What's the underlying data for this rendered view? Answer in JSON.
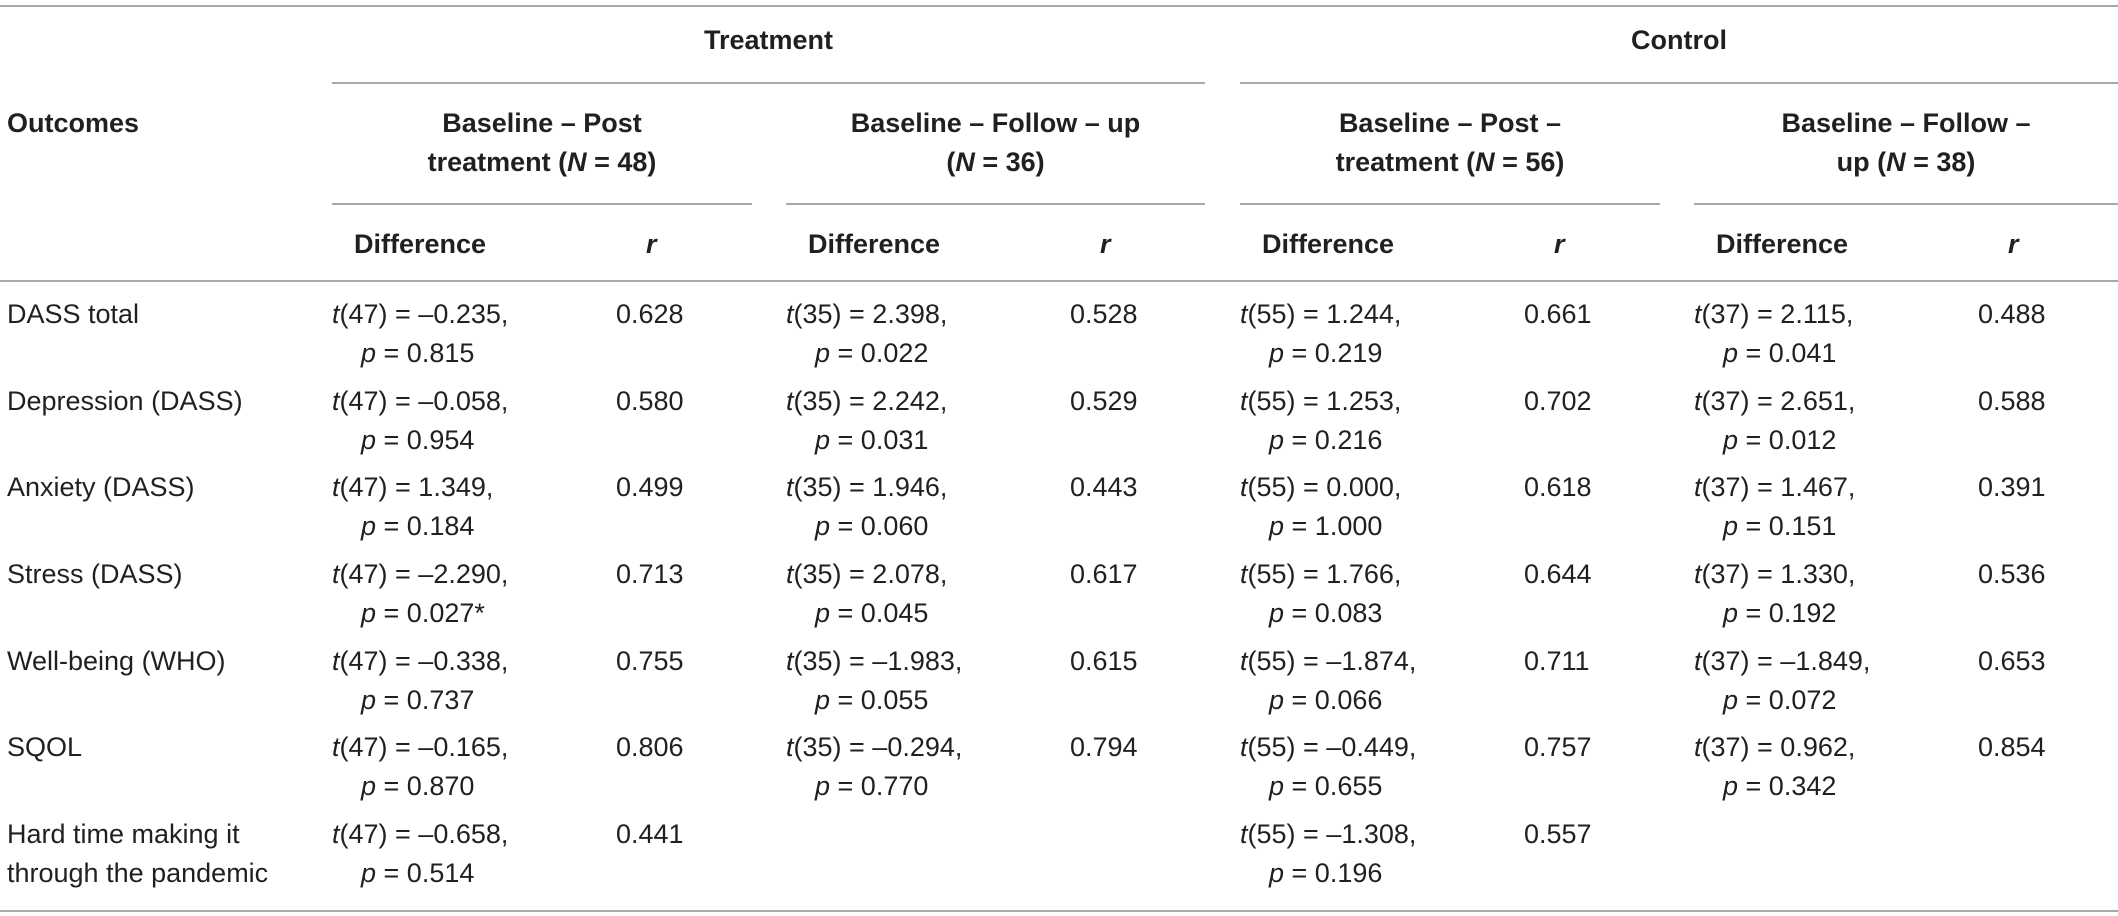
{
  "header": {
    "outcomes_label": "Outcomes",
    "groups": [
      {
        "label": "Treatment",
        "periods": [
          {
            "line1": "Baseline – Post",
            "line2_pre": "treatment (",
            "n_letter": "N",
            "line2_post": " = 48)"
          },
          {
            "line1": "Baseline – Follow – up",
            "line2_pre": "(",
            "n_letter": "N",
            "line2_post": " = 36)"
          }
        ]
      },
      {
        "label": "Control",
        "periods": [
          {
            "line1": "Baseline – Post –",
            "line2_pre": "treatment (",
            "n_letter": "N",
            "line2_post": " = 56)"
          },
          {
            "line1": "Baseline – Follow –",
            "line2_pre": "up (",
            "n_letter": "N",
            "line2_post": " = 38)"
          }
        ]
      }
    ],
    "difference_label": "Difference",
    "r_label": "r"
  },
  "rows": [
    {
      "outcome_lines": [
        "DASS total"
      ],
      "cells": [
        {
          "df": "(47) = –0.235,",
          "p": " = 0.815",
          "r": "0.628"
        },
        {
          "df": "(35) = 2.398,",
          "p": " = 0.022",
          "r": "0.528"
        },
        {
          "df": "(55) = 1.244,",
          "p": " = 0.219",
          "r": "0.661"
        },
        {
          "df": "(37) = 2.115,",
          "p": " = 0.041",
          "r": "0.488"
        }
      ]
    },
    {
      "outcome_lines": [
        "Depression (DASS)"
      ],
      "cells": [
        {
          "df": "(47) = –0.058,",
          "p": " = 0.954",
          "r": "0.580"
        },
        {
          "df": "(35) = 2.242,",
          "p": " = 0.031",
          "r": "0.529"
        },
        {
          "df": "(55) = 1.253,",
          "p": " = 0.216",
          "r": "0.702"
        },
        {
          "df": "(37) = 2.651,",
          "p": " = 0.012",
          "r": "0.588"
        }
      ]
    },
    {
      "outcome_lines": [
        "Anxiety (DASS)"
      ],
      "cells": [
        {
          "df": "(47) = 1.349,",
          "p": " = 0.184",
          "r": "0.499"
        },
        {
          "df": "(35) = 1.946,",
          "p": " = 0.060",
          "r": "0.443"
        },
        {
          "df": "(55) = 0.000,",
          "p": " = 1.000",
          "r": "0.618"
        },
        {
          "df": "(37) = 1.467,",
          "p": " = 0.151",
          "r": "0.391"
        }
      ]
    },
    {
      "outcome_lines": [
        "Stress (DASS)"
      ],
      "cells": [
        {
          "df": "(47) = –2.290,",
          "p": " = 0.027*",
          "r": "0.713"
        },
        {
          "df": "(35) = 2.078,",
          "p": " = 0.045",
          "r": "0.617"
        },
        {
          "df": "(55) = 1.766,",
          "p": " = 0.083",
          "r": "0.644"
        },
        {
          "df": "(37) = 1.330,",
          "p": " = 0.192",
          "r": "0.536"
        }
      ]
    },
    {
      "outcome_lines": [
        "Well-being (WHO)"
      ],
      "cells": [
        {
          "df": "(47) = –0.338,",
          "p": " = 0.737",
          "r": "0.755"
        },
        {
          "df": "(35) = –1.983,",
          "p": " = 0.055",
          "r": "0.615"
        },
        {
          "df": "(55) = –1.874,",
          "p": " = 0.066",
          "r": "0.711"
        },
        {
          "df": "(37) = –1.849,",
          "p": " = 0.072",
          "r": "0.653"
        }
      ]
    },
    {
      "outcome_lines": [
        "SQOL"
      ],
      "cells": [
        {
          "df": "(47) = –0.165,",
          "p": " = 0.870",
          "r": "0.806"
        },
        {
          "df": "(35) = –0.294,",
          "p": " = 0.770",
          "r": "0.794"
        },
        {
          "df": "(55) = –0.449,",
          "p": " = 0.655",
          "r": "0.757"
        },
        {
          "df": "(37) = 0.962,",
          "p": " = 0.342",
          "r": "0.854"
        }
      ]
    },
    {
      "outcome_lines": [
        "Hard time making it",
        "through the pandemic"
      ],
      "cells": [
        {
          "df": "(47) = –0.658,",
          "p": " = 0.514",
          "r": "0.441"
        },
        null,
        {
          "df": "(55) = –1.308,",
          "p": " = 0.196",
          "r": "0.557"
        },
        null
      ]
    }
  ],
  "stat_symbols": {
    "t": "t",
    "p": "p"
  }
}
